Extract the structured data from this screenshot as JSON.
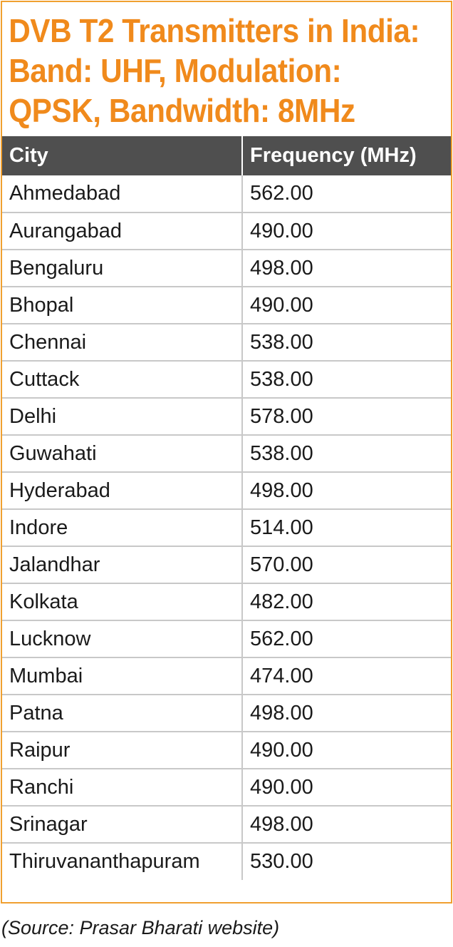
{
  "title": "DVB T2 Transmitters in India: Band: UHF, Modulation: QPSK, Bandwidth: 8MHz",
  "table": {
    "headers": [
      "City",
      "Frequency (MHz)"
    ],
    "rows": [
      [
        "Ahmedabad",
        "562.00"
      ],
      [
        "Aurangabad",
        "490.00"
      ],
      [
        "Bengaluru",
        "498.00"
      ],
      [
        "Bhopal",
        "490.00"
      ],
      [
        "Chennai",
        "538.00"
      ],
      [
        "Cuttack",
        "538.00"
      ],
      [
        "Delhi",
        "578.00"
      ],
      [
        "Guwahati",
        "538.00"
      ],
      [
        "Hyderabad",
        "498.00"
      ],
      [
        "Indore",
        "514.00"
      ],
      [
        "Jalandhar",
        "570.00"
      ],
      [
        "Kolkata",
        "482.00"
      ],
      [
        "Lucknow",
        "562.00"
      ],
      [
        "Mumbai",
        "474.00"
      ],
      [
        "Patna",
        "498.00"
      ],
      [
        "Raipur",
        "490.00"
      ],
      [
        "Ranchi",
        "490.00"
      ],
      [
        "Srinagar",
        "498.00"
      ],
      [
        "Thiruvananthapuram",
        "530.00"
      ]
    ]
  },
  "source": "(Source: Prasar Bharati website)",
  "colors": {
    "accent": "#f08a1c",
    "border": "#f0a030",
    "header_bg": "#4f4f4f",
    "grid": "#c8c8c8"
  }
}
